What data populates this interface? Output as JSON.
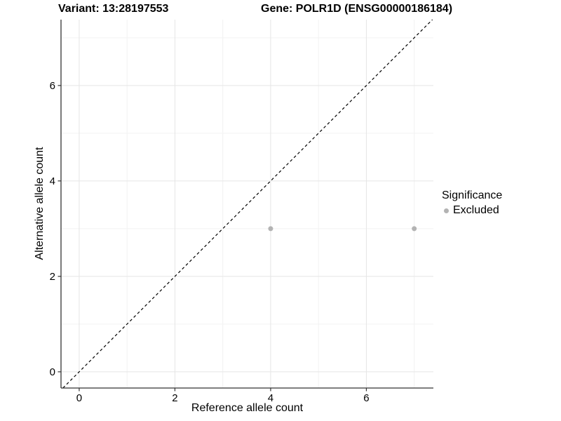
{
  "chart_data": {
    "type": "scatter",
    "title_left": "Variant: 13:28197553",
    "title_right": "Gene: POLR1D (ENSG00000186184)",
    "xlabel": "Reference allele count",
    "ylabel": "Alternative allele count",
    "xlim": [
      -0.38,
      7.4
    ],
    "ylim": [
      -0.34,
      7.38
    ],
    "x_ticks": [
      0,
      2,
      4,
      6
    ],
    "y_ticks": [
      0,
      2,
      4,
      6
    ],
    "x_minor_gridlines": [
      1,
      3,
      5,
      7
    ],
    "y_minor_gridlines": [
      1,
      3,
      5,
      7
    ],
    "grid": "major and minor, light gray on white",
    "series": [
      {
        "name": "Excluded",
        "marker": "circle",
        "marker_diameter_px": 7,
        "color": "#b3b3b3",
        "points": [
          {
            "x": 4,
            "y": 3
          },
          {
            "x": 7,
            "y": 3
          }
        ]
      }
    ],
    "reference_line": {
      "equation": "y = x",
      "style": "dashed",
      "color": "#000000"
    },
    "legend_position": "right-center"
  },
  "legend": {
    "title": "Significance",
    "items": [
      {
        "label": "Excluded",
        "color": "#b3b3b3",
        "marker": "circle-icon"
      }
    ]
  },
  "colors": {
    "background": "#ffffff",
    "axis_line": "#333333",
    "tick_mark": "#333333",
    "text": "#000000",
    "grid_major": "#e5e5e5",
    "grid_minor": "#f2f2f2",
    "point": "#b3b3b3",
    "reference_line": "#000000"
  }
}
